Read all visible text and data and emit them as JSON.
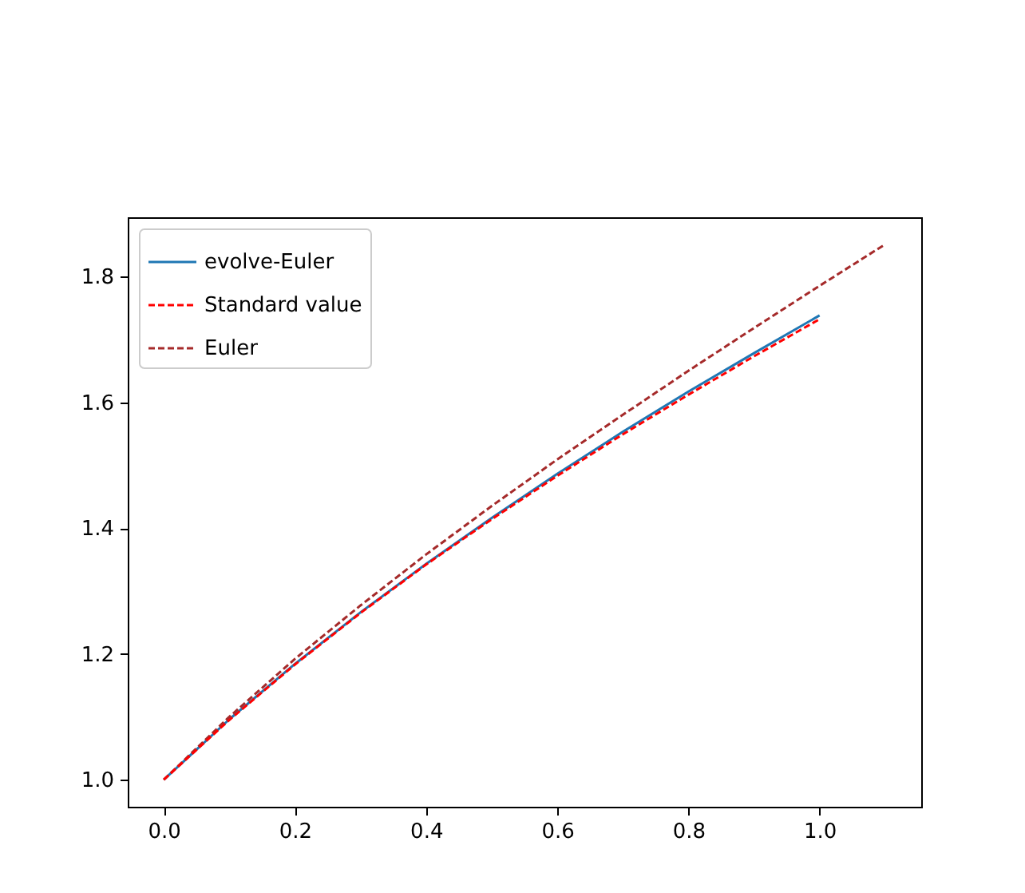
{
  "chart_data": {
    "type": "line",
    "x": [
      0,
      0.1,
      0.2,
      0.3,
      0.4,
      0.5,
      0.6,
      0.7,
      0.8,
      0.9,
      1.0
    ],
    "series": [
      {
        "name": "evolve-Euler",
        "color": "#1f77b4",
        "line_style": "solid",
        "values": [
          1.0,
          1.096,
          1.184,
          1.266,
          1.343,
          1.416,
          1.486,
          1.553,
          1.617,
          1.678,
          1.738
        ]
      },
      {
        "name": "Standard value",
        "color": "#ff0000",
        "line_style": "dashed",
        "values": [
          1.0,
          1.095,
          1.183,
          1.265,
          1.342,
          1.414,
          1.483,
          1.549,
          1.612,
          1.673,
          1.732
        ]
      },
      {
        "name": "Euler",
        "color": "#a52a2a",
        "line_style": "dashed",
        "x": [
          0,
          0.1,
          0.2,
          0.3,
          0.4,
          0.5,
          0.6,
          0.7,
          0.8,
          0.9,
          1.0,
          1.1
        ],
        "values": [
          1.0,
          1.1,
          1.192,
          1.277,
          1.358,
          1.435,
          1.509,
          1.58,
          1.65,
          1.718,
          1.785,
          1.851
        ]
      }
    ],
    "xlim": [
      -0.055,
      1.155
    ],
    "ylim": [
      0.957,
      1.894
    ],
    "xticks": [
      {
        "value": 0,
        "label": "0.0"
      },
      0.2,
      0.4,
      0.6,
      0.8,
      {
        "value": 1,
        "label": "1.0"
      }
    ],
    "yticks": [
      {
        "value": 1,
        "label": "1.0"
      },
      1.2,
      1.4,
      1.6,
      1.8
    ],
    "legend": "top left"
  }
}
